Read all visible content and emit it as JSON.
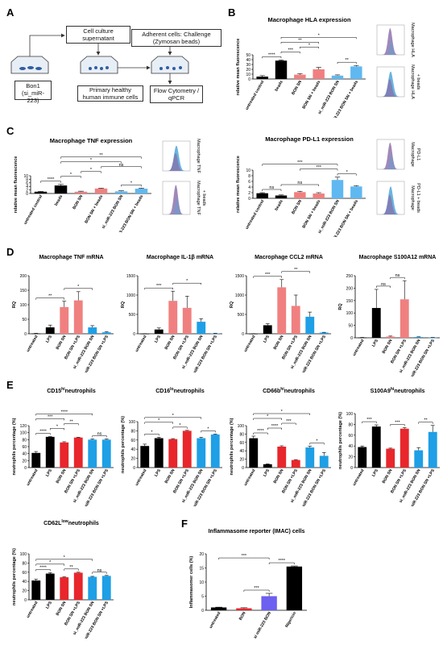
{
  "panel_labels": [
    "A",
    "B",
    "C",
    "D",
    "E",
    "F"
  ],
  "panel_a": {
    "cell_culture": "Cell culture supernatant",
    "adherent": "Adherent cells: Challenge (Zymosan beads)",
    "bon1_line1": "Bon1",
    "bon1_line2": "(si_miR-223)",
    "primary": "Primary healthy human immune cells",
    "flow": "Flow Cytometry / qPCR"
  },
  "colors": {
    "black": "#000000",
    "pink": "#f08080",
    "red": "#e8262b",
    "blue": "#1e9fe6",
    "lightblue": "#5fb8f0",
    "purple": "#6d5ff0",
    "hist_purple": "#8a6aa8",
    "hist_blue": "#4fa8d8"
  },
  "chart_data": [
    {
      "id": "b_hla",
      "type": "bar",
      "title": "Macrophage HLA expression",
      "ylabel": "relative mean fluorescence",
      "ylim": [
        0,
        50
      ],
      "yticks": [
        0,
        10,
        20,
        30,
        40,
        50
      ],
      "categories": [
        "untreated control",
        "beads",
        "BON SN",
        "BON SN + beads",
        "si_miR-223 BON SN",
        "si_miR-223 BON SN + beads"
      ],
      "values": [
        5,
        38,
        9,
        20,
        7,
        26
      ],
      "errors": [
        2,
        1.5,
        2,
        4,
        1.5,
        2
      ],
      "bar_colors": [
        "black",
        "black",
        "pink",
        "pink",
        "lightblue",
        "lightblue"
      ],
      "significance": [
        {
          "from": 0,
          "to": 1,
          "label": "****"
        },
        {
          "from": 1,
          "to": 2,
          "label": "***"
        },
        {
          "from": 1,
          "to": 3,
          "label": "**"
        },
        {
          "from": 1,
          "to": 5,
          "label": "*"
        },
        {
          "from": 2,
          "to": 3,
          "label": "*"
        },
        {
          "from": 4,
          "to": 5,
          "label": "**"
        }
      ]
    },
    {
      "id": "c_tnf",
      "type": "bar",
      "title": "Macrophage TNF expression",
      "ylabel": "relative mean fluorescence",
      "ylim": [
        0,
        10
      ],
      "yticks": [
        0,
        2,
        4,
        6,
        8,
        10
      ],
      "categories": [
        "untreated control",
        "beads",
        "BON SN",
        "BON SN + beads",
        "si_miR-223 BON SN",
        "si_miR-223 BON SN + beads"
      ],
      "values": [
        1,
        4.5,
        1,
        2.8,
        1.2,
        2.7
      ],
      "errors": [
        0.2,
        0.6,
        0.3,
        0.2,
        0.3,
        0.3
      ],
      "bar_colors": [
        "black",
        "black",
        "pink",
        "pink",
        "lightblue",
        "lightblue"
      ],
      "significance": [
        {
          "from": 0,
          "to": 1,
          "label": "****"
        },
        {
          "from": 1,
          "to": 2,
          "label": "*"
        },
        {
          "from": 1,
          "to": 4,
          "label": "*"
        },
        {
          "from": 1,
          "to": 5,
          "label": "**"
        },
        {
          "from": 2,
          "to": 3,
          "label": "*"
        },
        {
          "from": 3,
          "to": 5,
          "label": "ns"
        },
        {
          "from": 4,
          "to": 5,
          "label": "*"
        }
      ]
    },
    {
      "id": "b_pdl1",
      "type": "bar",
      "title": "Macrophage PD-L1 expression",
      "ylabel": "relative mean fluorescence",
      "ylim": [
        0,
        10
      ],
      "yticks": [
        0,
        2,
        4,
        6,
        8,
        10
      ],
      "categories": [
        "untreated control",
        "beads",
        "BON SN",
        "BON SN + beads",
        "si_miR-223 BON SN",
        "si_miR-223 BON SN + beads"
      ],
      "values": [
        1.8,
        1,
        2.2,
        1.7,
        6.5,
        4.2
      ],
      "errors": [
        0.2,
        0.2,
        0.3,
        0.3,
        1,
        0.3
      ],
      "bar_colors": [
        "black",
        "black",
        "pink",
        "pink",
        "lightblue",
        "lightblue"
      ],
      "significance": [
        {
          "from": 0,
          "to": 1,
          "label": "ns"
        },
        {
          "from": 0,
          "to": 4,
          "label": "***"
        },
        {
          "from": 1,
          "to": 3,
          "label": "ns"
        },
        {
          "from": 2,
          "to": 4,
          "label": "***"
        },
        {
          "from": 4,
          "to": 5,
          "label": "*"
        }
      ]
    },
    {
      "id": "d_tnf",
      "type": "bar",
      "title": "Macrophage TNF mRNA",
      "ylabel": "RQ",
      "ylim": [
        0,
        200
      ],
      "yticks": [
        0,
        50,
        100,
        150,
        200
      ],
      "categories": [
        "untreated",
        "LPS",
        "BON SN",
        "BON SN +LPS",
        "si_miR-223 BON SN",
        "si_miR-223 BON SN +LPS"
      ],
      "values": [
        1,
        22,
        92,
        115,
        22,
        5
      ],
      "errors": [
        0.5,
        8,
        20,
        30,
        6,
        2
      ],
      "bar_colors": [
        "black",
        "black",
        "pink",
        "pink",
        "blue",
        "blue"
      ],
      "significance": [
        {
          "from": 0,
          "to": 2,
          "label": "**"
        },
        {
          "from": 2,
          "to": 4,
          "label": "*"
        }
      ]
    },
    {
      "id": "d_il1b",
      "type": "bar",
      "title": "Macrophage IL-1β mRNA",
      "ylabel": "RQ",
      "ylim": [
        0,
        1500
      ],
      "yticks": [
        0,
        500,
        1000,
        1500
      ],
      "categories": [
        "untreated",
        "LPS",
        "BON SN",
        "BON SN +LPS",
        "si_miR-223 BON SN",
        "si_miR-223 BON SN +LPS"
      ],
      "values": [
        1,
        110,
        850,
        670,
        310,
        10
      ],
      "errors": [
        0.5,
        40,
        250,
        300,
        80,
        3
      ],
      "bar_colors": [
        "black",
        "black",
        "pink",
        "pink",
        "blue",
        "blue"
      ],
      "significance": [
        {
          "from": 0,
          "to": 2,
          "label": "***"
        },
        {
          "from": 2,
          "to": 4,
          "label": "*"
        }
      ]
    },
    {
      "id": "d_ccl2",
      "type": "bar",
      "title": "Macrophage CCL2 mRNA",
      "ylabel": "RQ",
      "ylim": [
        0,
        1500
      ],
      "yticks": [
        0,
        500,
        1000,
        1500
      ],
      "categories": [
        "untreated",
        "LPS",
        "BON SN",
        "BON SN +LPS",
        "si_miR-223 BON SN",
        "si_miR-223 BON SN +LPS"
      ],
      "values": [
        1,
        220,
        1200,
        720,
        440,
        30
      ],
      "errors": [
        0.5,
        40,
        200,
        280,
        120,
        8
      ],
      "bar_colors": [
        "black",
        "black",
        "pink",
        "pink",
        "blue",
        "blue"
      ],
      "significance": [
        {
          "from": 0,
          "to": 2,
          "label": "***"
        },
        {
          "from": 2,
          "to": 4,
          "label": "**"
        }
      ]
    },
    {
      "id": "d_s100a12",
      "type": "bar",
      "title": "Macrophage S100A12 mRNA",
      "ylabel": "RQ",
      "ylim": [
        0,
        250
      ],
      "yticks": [
        0,
        50,
        100,
        150,
        200,
        250
      ],
      "categories": [
        "untreated",
        "LPS",
        "BON SN",
        "BON SN +LPS",
        "si_miR-223 BON SN",
        "si_miR-223 BON SN +LPS"
      ],
      "values": [
        1,
        120,
        5,
        155,
        3,
        1
      ],
      "errors": [
        0.5,
        75,
        2,
        75,
        1,
        0.5
      ],
      "bar_colors": [
        "black",
        "black",
        "pink",
        "pink",
        "blue",
        "blue"
      ],
      "significance": [
        {
          "from": 1,
          "to": 2,
          "label": "ns"
        },
        {
          "from": 2,
          "to": 3,
          "label": "ns"
        }
      ]
    },
    {
      "id": "e_cd15",
      "type": "bar",
      "title": "CD15hineutrophils",
      "title_base": "CD15",
      "title_sup": "hi",
      "title_rest": "neutrophils",
      "ylabel": "neutrophils percentage (%)",
      "ylim": [
        0,
        120
      ],
      "yticks": [
        0,
        20,
        40,
        60,
        80,
        100,
        120
      ],
      "categories": [
        "untreated",
        "LPS",
        "BON SN",
        "BON SN +LPS",
        "si_miR-223 BON SN",
        "si_miR-223 BON SN +LPS"
      ],
      "values": [
        42,
        88,
        72,
        86,
        80,
        80
      ],
      "errors": [
        4,
        1,
        2,
        1,
        2,
        2
      ],
      "bar_colors": [
        "black",
        "black",
        "red",
        "red",
        "blue",
        "blue"
      ],
      "significance": [
        {
          "from": 0,
          "to": 1,
          "label": "****"
        },
        {
          "from": 0,
          "to": 2,
          "label": "***"
        },
        {
          "from": 0,
          "to": 4,
          "label": "****"
        },
        {
          "from": 1,
          "to": 2,
          "label": "*"
        },
        {
          "from": 2,
          "to": 3,
          "label": "**"
        },
        {
          "from": 4,
          "to": 5,
          "label": "ns"
        }
      ]
    },
    {
      "id": "e_cd16",
      "type": "bar",
      "title": "CD16loneutrophils",
      "title_base": "CD16",
      "title_sup": "lo",
      "title_rest": "neutrophils",
      "ylabel": "neutrophils percentage (%)",
      "ylim": [
        0,
        100
      ],
      "yticks": [
        0,
        20,
        40,
        60,
        80,
        100
      ],
      "categories": [
        "untreated",
        "LPS",
        "BON SN",
        "BON SN +LPS",
        "si_miR-223 BON SN",
        "si_miR-223 BON SN +LPS"
      ],
      "values": [
        47,
        64,
        62,
        80,
        64,
        72
      ],
      "errors": [
        4,
        2,
        1,
        1,
        2,
        1
      ],
      "bar_colors": [
        "black",
        "black",
        "red",
        "red",
        "blue",
        "blue"
      ],
      "significance": [
        {
          "from": 0,
          "to": 1,
          "label": "*"
        },
        {
          "from": 0,
          "to": 2,
          "label": "*"
        },
        {
          "from": 0,
          "to": 4,
          "label": "*"
        },
        {
          "from": 2,
          "to": 3,
          "label": "*"
        },
        {
          "from": 4,
          "to": 5,
          "label": "*"
        }
      ]
    },
    {
      "id": "e_cd66b",
      "type": "bar",
      "title": "CD66bhineutrophils",
      "title_base": "CD66b",
      "title_sup": "hi",
      "title_rest": "neutrophils",
      "ylabel": "neutrophils percentage (%)",
      "ylim": [
        0,
        100
      ],
      "yticks": [
        0,
        20,
        40,
        60,
        80,
        100
      ],
      "categories": [
        "untreated",
        "LPS",
        "BON SN",
        "BON SN +LPS",
        "si_miR-223 BON SN",
        "si_miR-223 BON SN +LPS"
      ],
      "values": [
        70,
        8,
        50,
        18,
        48,
        28
      ],
      "errors": [
        5,
        1,
        2,
        1,
        3,
        8
      ],
      "bar_colors": [
        "black",
        "black",
        "red",
        "red",
        "blue",
        "blue"
      ],
      "significance": [
        {
          "from": 0,
          "to": 1,
          "label": "****"
        },
        {
          "from": 0,
          "to": 2,
          "label": "*"
        },
        {
          "from": 0,
          "to": 4,
          "label": "*"
        },
        {
          "from": 1,
          "to": 2,
          "label": "****"
        },
        {
          "from": 2,
          "to": 3,
          "label": "***"
        },
        {
          "from": 4,
          "to": 5,
          "label": "*"
        }
      ]
    },
    {
      "id": "e_s100a9",
      "type": "bar",
      "title": "S100A9hineutrophils",
      "title_base": "S100A9",
      "title_sup": "hi",
      "title_rest": "neutrophils",
      "ylabel": "neutrophils percentage (%)",
      "ylim": [
        0,
        100
      ],
      "yticks": [
        0,
        20,
        40,
        60,
        80,
        100
      ],
      "categories": [
        "untreated",
        "LPS",
        "BON SN",
        "BON SN +LPS",
        "si_miR-223 BON SN",
        "si_miR-223 BON SN +LPS"
      ],
      "values": [
        38,
        76,
        35,
        72,
        32,
        66
      ],
      "errors": [
        2,
        3,
        1,
        2,
        5,
        12
      ],
      "bar_colors": [
        "black",
        "black",
        "red",
        "red",
        "blue",
        "blue"
      ],
      "significance": [
        {
          "from": 0,
          "to": 1,
          "label": "***"
        },
        {
          "from": 2,
          "to": 3,
          "label": "***"
        },
        {
          "from": 4,
          "to": 5,
          "label": "**"
        }
      ]
    },
    {
      "id": "e_cd62l",
      "type": "bar",
      "title": "CD62Llowneutrophils",
      "title_base": "CD62L",
      "title_sup": "low",
      "title_rest": "neutrophils",
      "ylabel": "neutrophils percentage (%)",
      "ylim": [
        0,
        100
      ],
      "yticks": [
        0,
        20,
        40,
        60,
        80,
        100
      ],
      "categories": [
        "untreated",
        "LPS",
        "BON SN",
        "BON SN +LPS",
        "si_miR-223 BON SN",
        "si_miR-223 BON SN +LPS"
      ],
      "values": [
        42,
        57,
        49,
        59,
        50,
        52
      ],
      "errors": [
        3,
        2,
        1,
        1,
        1,
        1
      ],
      "bar_colors": [
        "black",
        "black",
        "red",
        "red",
        "blue",
        "blue"
      ],
      "significance": [
        {
          "from": 0,
          "to": 1,
          "label": "****"
        },
        {
          "from": 0,
          "to": 2,
          "label": "*"
        },
        {
          "from": 0,
          "to": 4,
          "label": "*"
        },
        {
          "from": 2,
          "to": 3,
          "label": "**"
        },
        {
          "from": 4,
          "to": 5,
          "label": "ns"
        }
      ]
    },
    {
      "id": "f_imac",
      "type": "bar",
      "title": "Inflammasome reporter (IMAC) cells",
      "ylabel": "Inflammasomer cells (%)",
      "ylim": [
        0,
        20
      ],
      "yticks": [
        0,
        5,
        10,
        15,
        20
      ],
      "categories": [
        "untreated",
        "BON",
        "si miR-223 BON",
        "Nigericin"
      ],
      "values": [
        1,
        0.7,
        5,
        15.5
      ],
      "errors": [
        0.1,
        0.2,
        1,
        0.2
      ],
      "bar_colors": [
        "black",
        "red",
        "purple",
        "black"
      ],
      "significance": [
        {
          "from": 0,
          "to": 2,
          "label": "***"
        },
        {
          "from": 1,
          "to": 2,
          "label": "***"
        },
        {
          "from": 2,
          "to": 3,
          "label": "****"
        }
      ]
    }
  ],
  "histograms": [
    {
      "id": "h_hla1",
      "label": "Macrophage HLA",
      "type": "purple"
    },
    {
      "id": "h_hla2",
      "label": "Macrophage HLA + beads",
      "type": "mixed"
    },
    {
      "id": "h_tnf1",
      "label": "Macrophage TNF",
      "type": "mixed"
    },
    {
      "id": "h_tnf2",
      "label": "Macrophage TNF + beads",
      "type": "purple"
    },
    {
      "id": "h_pdl1a",
      "label": "Macrophage PD-L1",
      "type": "purple"
    },
    {
      "id": "h_pdl1b",
      "label": "Macrophage PD-L1 + beads",
      "type": "mixed"
    }
  ]
}
